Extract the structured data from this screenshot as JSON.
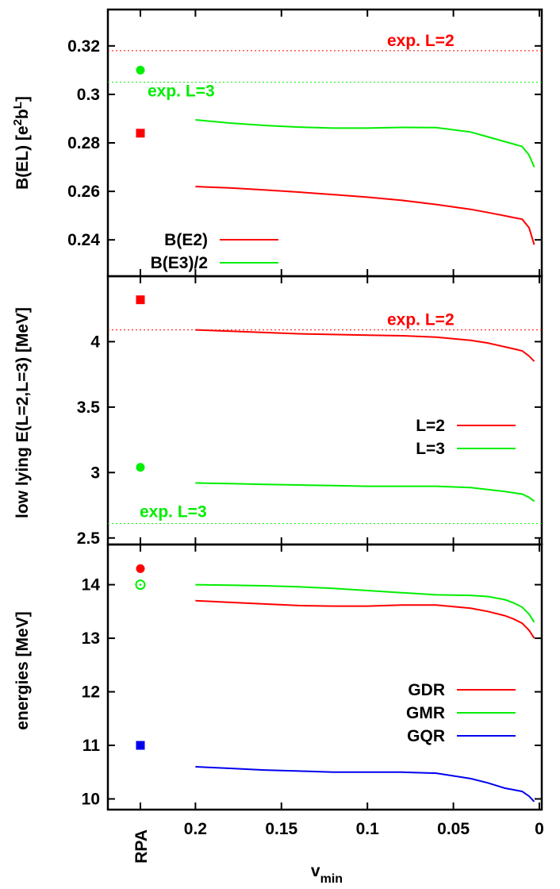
{
  "chart_data": [
    {
      "type": "line",
      "ylabel_base": "B(EL) [e",
      "ylabel_sup1": "2",
      "ylabel_mid": "b",
      "ylabel_sup2": "L",
      "ylabel_end": "]",
      "ylim": [
        0.225,
        0.335
      ],
      "xlim": [
        0.25,
        0
      ],
      "yticks": [
        {
          "v": 0.24,
          "label": "0.24"
        },
        {
          "v": 0.26,
          "label": "0.26"
        },
        {
          "v": 0.28,
          "label": "0.28"
        },
        {
          "v": 0.3,
          "label": "0.3"
        },
        {
          "v": 0.32,
          "label": "0.32"
        }
      ],
      "series": [
        {
          "name": "B(E2)",
          "color": "#ff0000",
          "x": [
            0.2,
            0.18,
            0.16,
            0.14,
            0.12,
            0.1,
            0.08,
            0.06,
            0.04,
            0.03,
            0.02,
            0.015,
            0.01,
            0.006,
            0.003
          ],
          "y": [
            0.262,
            0.2614,
            0.2606,
            0.2597,
            0.2587,
            0.2576,
            0.2563,
            0.2546,
            0.2526,
            0.2513,
            0.2499,
            0.2492,
            0.2485,
            0.245,
            0.238
          ]
        },
        {
          "name": "B(E3)/2",
          "color": "#00ee00",
          "x": [
            0.2,
            0.18,
            0.16,
            0.14,
            0.12,
            0.1,
            0.08,
            0.06,
            0.04,
            0.03,
            0.02,
            0.015,
            0.01,
            0.006,
            0.003
          ],
          "y": [
            0.2895,
            0.2882,
            0.2872,
            0.2865,
            0.2861,
            0.2861,
            0.2864,
            0.2863,
            0.2845,
            0.2825,
            0.2805,
            0.2795,
            0.2785,
            0.275,
            0.27
          ]
        }
      ],
      "rpa_points": [
        {
          "shape": "square",
          "color": "#ff0000",
          "y": 0.284
        },
        {
          "shape": "circle",
          "color": "#00ee00",
          "y": 0.31
        }
      ],
      "reference_lines": [
        {
          "label": "exp. L=2",
          "color": "#ff0000",
          "y": 0.318
        },
        {
          "label": "exp. L=3",
          "color": "#00ee00",
          "y": 0.305
        }
      ],
      "legend": [
        "B(E2)",
        "B(E3)/2"
      ]
    },
    {
      "type": "line",
      "ylabel": "low lying E(L=2,L=3) [MeV]",
      "ylim": [
        2.45,
        4.5
      ],
      "xlim": [
        0.25,
        0
      ],
      "yticks": [
        {
          "v": 2.5,
          "label": "2.5"
        },
        {
          "v": 3,
          "label": "3"
        },
        {
          "v": 3.5,
          "label": "3.5"
        },
        {
          "v": 4,
          "label": "4"
        }
      ],
      "series": [
        {
          "name": "L=2",
          "color": "#ff0000",
          "x": [
            0.2,
            0.18,
            0.16,
            0.14,
            0.12,
            0.1,
            0.08,
            0.06,
            0.04,
            0.03,
            0.02,
            0.015,
            0.01,
            0.006,
            0.003
          ],
          "y": [
            4.09,
            4.08,
            4.07,
            4.06,
            4.055,
            4.05,
            4.045,
            4.035,
            4.01,
            3.99,
            3.96,
            3.945,
            3.93,
            3.89,
            3.85
          ]
        },
        {
          "name": "L=3",
          "color": "#00ee00",
          "x": [
            0.2,
            0.18,
            0.16,
            0.14,
            0.12,
            0.1,
            0.08,
            0.06,
            0.04,
            0.03,
            0.02,
            0.015,
            0.01,
            0.006,
            0.003
          ],
          "y": [
            2.92,
            2.915,
            2.91,
            2.905,
            2.9,
            2.895,
            2.895,
            2.895,
            2.885,
            2.87,
            2.855,
            2.845,
            2.835,
            2.81,
            2.78
          ]
        }
      ],
      "rpa_points": [
        {
          "shape": "square",
          "color": "#ff0000",
          "y": 4.32
        },
        {
          "shape": "circle",
          "color": "#00ee00",
          "y": 3.04
        }
      ],
      "reference_lines": [
        {
          "label": "exp. L=2",
          "color": "#ff0000",
          "y": 4.09
        },
        {
          "label": "exp. L=3",
          "color": "#00ee00",
          "y": 2.61
        }
      ],
      "legend": [
        "L=2",
        "L=3"
      ]
    },
    {
      "type": "line",
      "ylabel": "energies [MeV]",
      "ylim": [
        9.8,
        14.75
      ],
      "xlim": [
        0.25,
        0
      ],
      "yticks": [
        {
          "v": 10,
          "label": "10"
        },
        {
          "v": 11,
          "label": "11"
        },
        {
          "v": 12,
          "label": "12"
        },
        {
          "v": 13,
          "label": "13"
        },
        {
          "v": 14,
          "label": "14"
        }
      ],
      "xticks": [
        {
          "v": 0.2,
          "label": "0.2"
        },
        {
          "v": 0.15,
          "label": "0.15"
        },
        {
          "v": 0.1,
          "label": "0.1"
        },
        {
          "v": 0.05,
          "label": "0.05"
        },
        {
          "v": 0,
          "label": "0"
        }
      ],
      "xlabel_base": "v",
      "xlabel_sub": "min",
      "rpa_label": "RPA",
      "series": [
        {
          "name": "GDR",
          "color": "#ff0000",
          "x": [
            0.2,
            0.18,
            0.16,
            0.14,
            0.12,
            0.1,
            0.08,
            0.06,
            0.04,
            0.03,
            0.02,
            0.015,
            0.01,
            0.006,
            0.003
          ],
          "y": [
            13.7,
            13.67,
            13.64,
            13.61,
            13.6,
            13.6,
            13.62,
            13.62,
            13.56,
            13.5,
            13.42,
            13.36,
            13.28,
            13.15,
            13.0
          ]
        },
        {
          "name": "GMR",
          "color": "#00ee00",
          "x": [
            0.2,
            0.18,
            0.16,
            0.14,
            0.12,
            0.1,
            0.08,
            0.06,
            0.04,
            0.03,
            0.02,
            0.015,
            0.01,
            0.006,
            0.003
          ],
          "y": [
            14.0,
            13.99,
            13.98,
            13.96,
            13.93,
            13.89,
            13.85,
            13.81,
            13.8,
            13.78,
            13.72,
            13.66,
            13.58,
            13.45,
            13.3
          ]
        },
        {
          "name": "GQR",
          "color": "#0000ee",
          "x": [
            0.2,
            0.18,
            0.16,
            0.14,
            0.12,
            0.1,
            0.08,
            0.06,
            0.04,
            0.03,
            0.02,
            0.015,
            0.01,
            0.006,
            0.003
          ],
          "y": [
            10.6,
            10.57,
            10.54,
            10.52,
            10.5,
            10.5,
            10.5,
            10.48,
            10.38,
            10.3,
            10.2,
            10.17,
            10.14,
            10.05,
            9.95
          ]
        }
      ],
      "rpa_points": [
        {
          "shape": "circle",
          "color": "#ff0000",
          "y": 14.3
        },
        {
          "shape": "open-circle",
          "color": "#00ee00",
          "y": 14.0
        },
        {
          "shape": "square",
          "color": "#0000ee",
          "y": 11.0
        }
      ],
      "reference_lines": [],
      "legend": [
        "GDR",
        "GMR",
        "GQR"
      ]
    }
  ]
}
